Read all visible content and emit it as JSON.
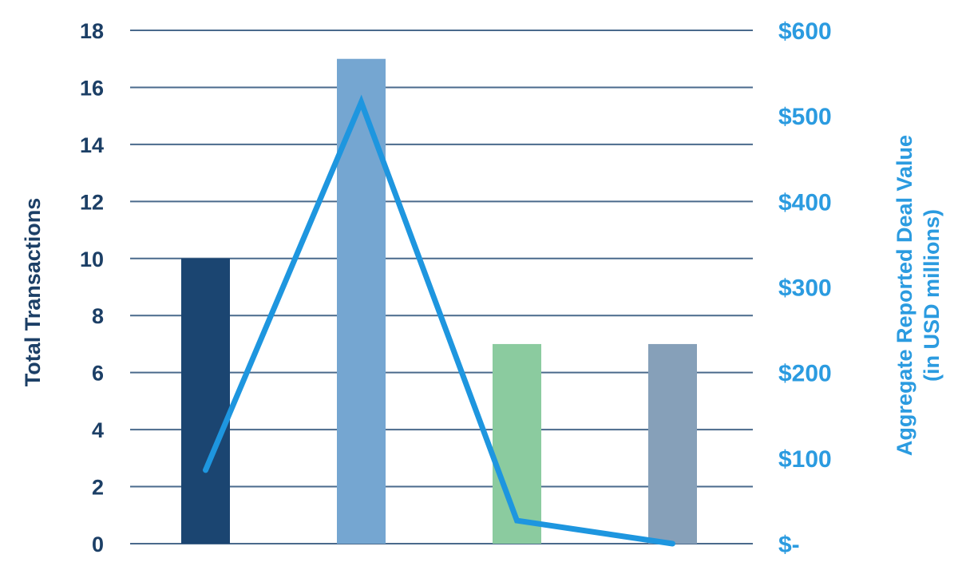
{
  "chart_data": {
    "type": "bar+line",
    "title": "",
    "categories": [
      "",
      "",
      "",
      ""
    ],
    "series": [
      {
        "axis": "left",
        "type": "bar",
        "values": [
          10,
          17,
          7,
          7
        ],
        "colors": [
          "#1b4571",
          "#75a6d1",
          "#8bcb9f",
          "#86a0b9"
        ]
      },
      {
        "axis": "right",
        "type": "line",
        "values": [
          86,
          516,
          27,
          0
        ],
        "color": "#1e96df"
      }
    ],
    "ylabel": "Total Transactions",
    "y2label_line1": "Aggregate Reported Deal Value",
    "y2label_line2": "(in USD millions)",
    "ylim": [
      0,
      18
    ],
    "y2lim": [
      0,
      600
    ],
    "yticks": [
      "0",
      "2",
      "4",
      "6",
      "8",
      "10",
      "12",
      "14",
      "16",
      "18"
    ],
    "y2ticks": [
      "$-",
      "$100",
      "$200",
      "$300",
      "$400",
      "$500",
      "$600"
    ],
    "grid": true,
    "left_axis_color": "#1c3f66",
    "right_axis_color": "#2b9be0",
    "grid_color": "#4a6a8c"
  }
}
